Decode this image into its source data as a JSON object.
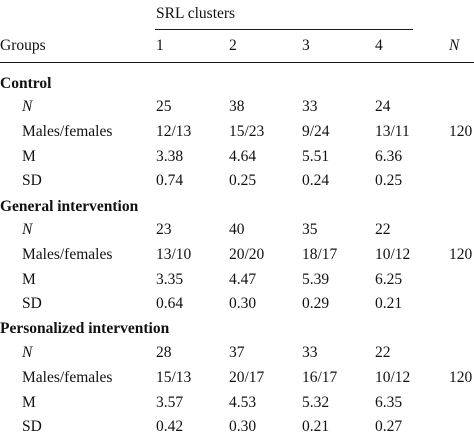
{
  "header": {
    "spanner": "SRL clusters",
    "groups_label": "Groups",
    "cluster_labels": [
      "1",
      "2",
      "3",
      "4"
    ],
    "n_label": "N"
  },
  "sections": [
    {
      "title": "Control",
      "rows": [
        {
          "label": "N",
          "values": [
            "25",
            "38",
            "33",
            "24"
          ],
          "total": ""
        },
        {
          "label": "Males/females",
          "values": [
            "12/13",
            "15/23",
            "9/24",
            "13/11"
          ],
          "total": "120"
        },
        {
          "label": "M",
          "values": [
            "3.38",
            "4.64",
            "5.51",
            "6.36"
          ],
          "total": ""
        },
        {
          "label": "SD",
          "values": [
            "0.74",
            "0.25",
            "0.24",
            "0.25"
          ],
          "total": ""
        }
      ]
    },
    {
      "title": "General intervention",
      "rows": [
        {
          "label": "N",
          "values": [
            "23",
            "40",
            "35",
            "22"
          ],
          "total": ""
        },
        {
          "label": "Males/females",
          "values": [
            "13/10",
            "20/20",
            "18/17",
            "10/12"
          ],
          "total": "120"
        },
        {
          "label": "M",
          "values": [
            "3.35",
            "4.47",
            "5.39",
            "6.25"
          ],
          "total": ""
        },
        {
          "label": "SD",
          "values": [
            "0.64",
            "0.30",
            "0.29",
            "0.21"
          ],
          "total": ""
        }
      ]
    },
    {
      "title": "Personalized intervention",
      "rows": [
        {
          "label": "N",
          "values": [
            "28",
            "37",
            "33",
            "22"
          ],
          "total": ""
        },
        {
          "label": "Males/females",
          "values": [
            "15/13",
            "20/17",
            "16/17",
            "10/12"
          ],
          "total": "120"
        },
        {
          "label": "M",
          "values": [
            "3.57",
            "4.53",
            "5.32",
            "6.35"
          ],
          "total": ""
        },
        {
          "label": "SD",
          "values": [
            "0.42",
            "0.30",
            "0.21",
            "0.27"
          ],
          "total": ""
        }
      ]
    }
  ]
}
